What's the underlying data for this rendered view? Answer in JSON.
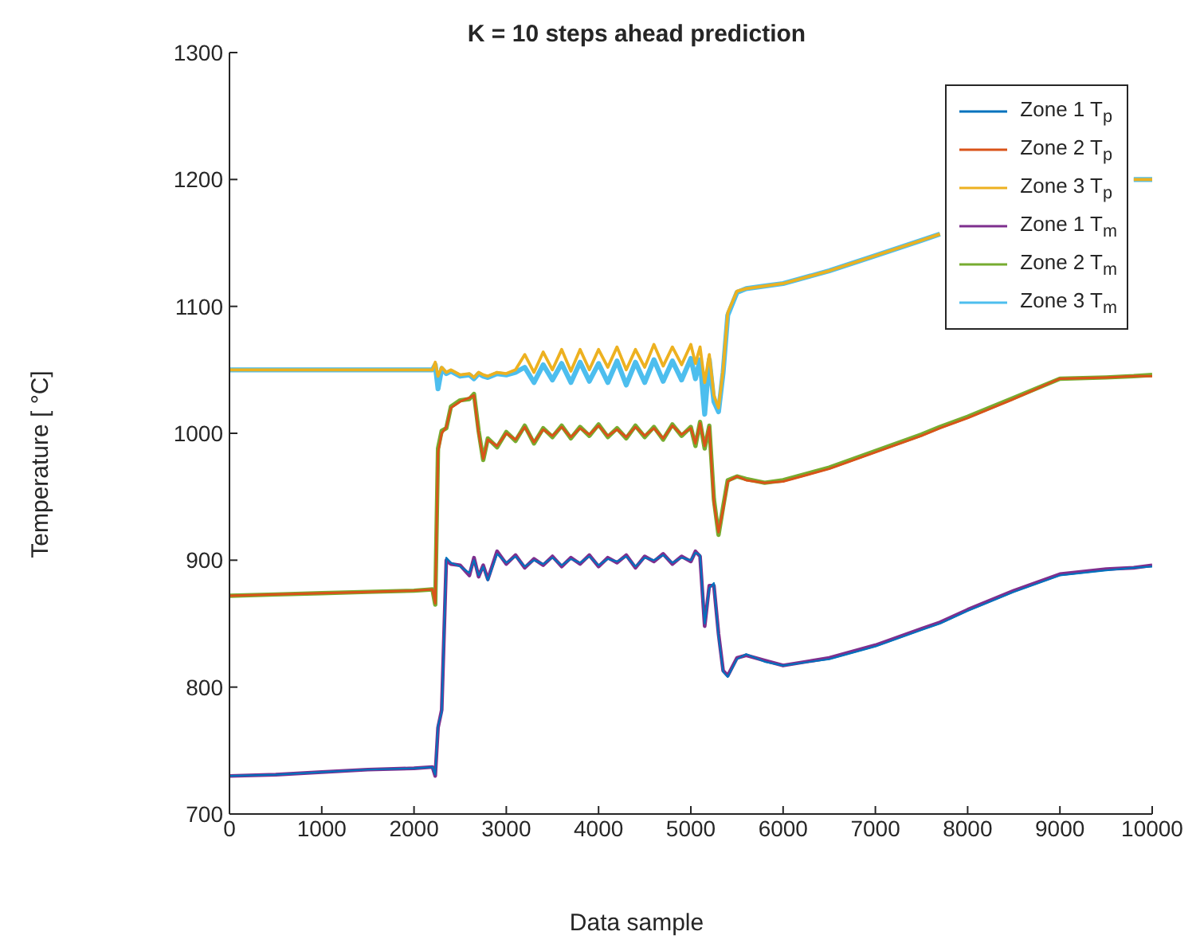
{
  "chart_data": {
    "type": "line",
    "title": "K = 10 steps ahead prediction",
    "xlabel": "Data sample",
    "ylabel": "Temperature [ °C]",
    "x": [
      0,
      500,
      1000,
      1500,
      2000,
      2200,
      2230,
      2260,
      2300,
      2350,
      2400,
      2500,
      2600,
      2650,
      2700,
      2750,
      2800,
      2900,
      3000,
      3100,
      3200,
      3300,
      3400,
      3500,
      3600,
      3700,
      3800,
      3900,
      4000,
      4100,
      4200,
      4300,
      4400,
      4500,
      4600,
      4700,
      4800,
      4900,
      5000,
      5050,
      5100,
      5150,
      5200,
      5250,
      5300,
      5350,
      5400,
      5500,
      5600,
      5800,
      6000,
      6500,
      7000,
      7500,
      7700,
      8000,
      8500,
      9000,
      9500,
      9800,
      10000
    ],
    "series": [
      {
        "name": "Zone 1 T$_{p}$",
        "color": "#0072bd",
        "values": [
          730,
          731,
          733,
          735,
          736,
          737,
          731,
          770,
          780,
          902,
          898,
          895,
          890,
          900,
          888,
          895,
          884,
          905,
          898,
          903,
          895,
          900,
          897,
          902,
          896,
          901,
          898,
          903,
          896,
          901,
          899,
          903,
          895,
          902,
          900,
          904,
          898,
          902,
          900,
          906,
          904,
          850,
          878,
          882,
          840,
          812,
          808,
          822,
          826,
          820,
          817,
          822,
          832,
          845,
          850,
          860,
          875,
          888,
          892,
          894,
          895
        ]
      },
      {
        "name": "Zone 2 T$_{p}$",
        "color": "#d95319",
        "values": [
          872,
          873,
          874,
          875,
          876,
          877,
          866,
          985,
          1000,
          1005,
          1020,
          1025,
          1028,
          1030,
          1000,
          980,
          995,
          990,
          1000,
          995,
          1005,
          993,
          1003,
          998,
          1005,
          997,
          1004,
          999,
          1006,
          998,
          1003,
          997,
          1005,
          998,
          1004,
          996,
          1006,
          999,
          1004,
          992,
          1008,
          990,
          1005,
          945,
          922,
          940,
          962,
          966,
          963,
          961,
          962,
          972,
          985,
          998,
          1004,
          1012,
          1027,
          1043,
          1044,
          1045,
          1045
        ]
      },
      {
        "name": "Zone 3 T$_{p}$",
        "color": "#edb120",
        "values": [
          1050,
          1050,
          1050,
          1050,
          1050,
          1050,
          1056,
          1045,
          1052,
          1048,
          1050,
          1046,
          1047,
          1044,
          1048,
          1046,
          1045,
          1048,
          1047,
          1050,
          1062,
          1048,
          1064,
          1050,
          1066,
          1049,
          1066,
          1050,
          1066,
          1052,
          1068,
          1050,
          1066,
          1052,
          1070,
          1053,
          1068,
          1054,
          1070,
          1055,
          1068,
          1040,
          1062,
          1030,
          1020,
          1050,
          1095,
          1112,
          1114,
          1116,
          1118,
          1128,
          1140,
          1152,
          1157,
          null,
          null,
          null,
          null,
          1200,
          1200
        ]
      },
      {
        "name": "Zone 1 T$_{m}$",
        "color": "#7e2f8e",
        "values": [
          730,
          731,
          733,
          735,
          736,
          737,
          730,
          768,
          782,
          900,
          897,
          896,
          888,
          902,
          887,
          896,
          885,
          907,
          897,
          904,
          894,
          901,
          896,
          903,
          895,
          902,
          897,
          904,
          895,
          902,
          898,
          904,
          894,
          903,
          899,
          905,
          897,
          903,
          899,
          907,
          903,
          848,
          880,
          880,
          842,
          813,
          809,
          823,
          825,
          821,
          817,
          823,
          833,
          846,
          851,
          861,
          876,
          889,
          893,
          894,
          896
        ]
      },
      {
        "name": "Zone 2 T$_{m}$",
        "color": "#77ac30",
        "values": [
          872,
          873,
          874,
          875,
          876,
          877,
          865,
          988,
          1002,
          1004,
          1021,
          1026,
          1027,
          1031,
          1002,
          979,
          996,
          989,
          1001,
          994,
          1006,
          992,
          1004,
          997,
          1006,
          996,
          1005,
          998,
          1007,
          997,
          1004,
          996,
          1006,
          997,
          1005,
          995,
          1007,
          998,
          1005,
          990,
          1009,
          988,
          1006,
          948,
          920,
          942,
          963,
          966,
          964,
          961,
          963,
          973,
          986,
          999,
          1005,
          1013,
          1028,
          1043,
          1044,
          1045,
          1046
        ]
      },
      {
        "name": "Zone 3 T$_{m}$",
        "color": "#4dbeee",
        "values": [
          1050,
          1050,
          1050,
          1050,
          1050,
          1050,
          1054,
          1035,
          1051,
          1047,
          1049,
          1045,
          1046,
          1043,
          1047,
          1045,
          1044,
          1047,
          1046,
          1048,
          1052,
          1040,
          1054,
          1042,
          1055,
          1040,
          1056,
          1041,
          1055,
          1040,
          1057,
          1038,
          1056,
          1040,
          1058,
          1041,
          1057,
          1042,
          1059,
          1043,
          1058,
          1015,
          1058,
          1025,
          1017,
          1048,
          1093,
          1111,
          1114,
          1116,
          1118,
          1128,
          1140,
          1152,
          1157,
          null,
          null,
          null,
          null,
          1200,
          1200
        ]
      }
    ],
    "xlim": [
      0,
      10000
    ],
    "xticks": [
      0,
      1000,
      2000,
      3000,
      4000,
      5000,
      6000,
      7000,
      8000,
      9000,
      10000
    ],
    "ylim": [
      700,
      1300
    ],
    "yticks": [
      700,
      800,
      900,
      1000,
      1100,
      1200,
      1300
    ],
    "grid": false,
    "legend": "top right"
  }
}
